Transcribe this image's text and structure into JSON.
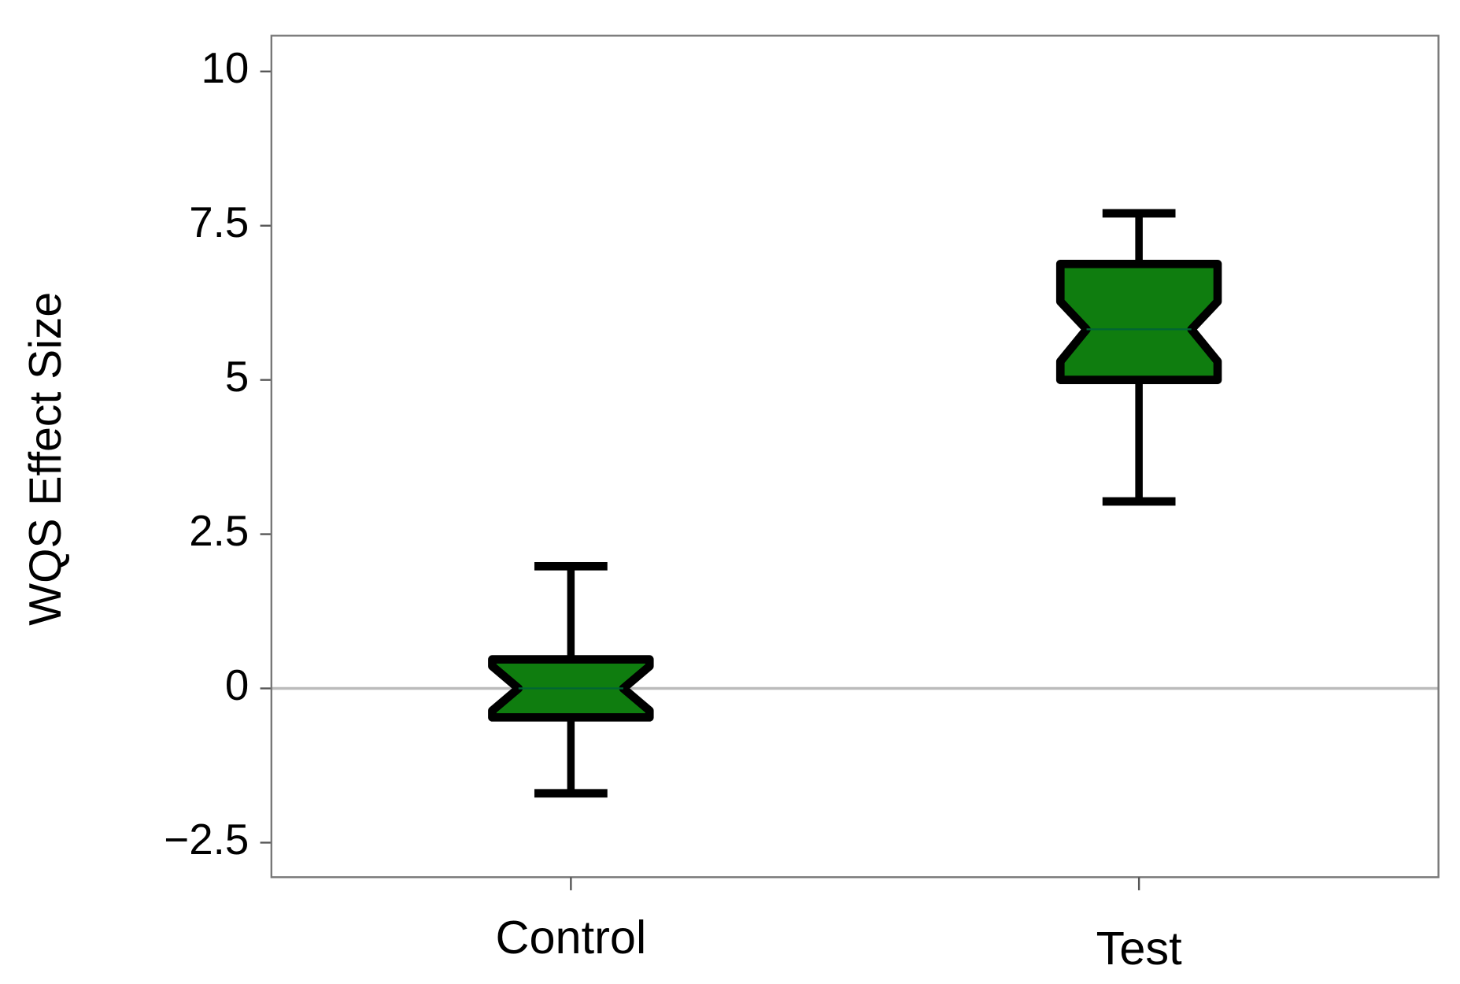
{
  "chart_data": {
    "type": "box",
    "y_label": "WQS Effect Size",
    "categories": [
      "Control",
      "Test"
    ],
    "boxes": [
      {
        "whisker_low": -1.7,
        "q1": -0.47,
        "notch_low": -0.36,
        "median": 0.0,
        "notch_high": 0.36,
        "q3": 0.47,
        "whisker_high": 1.98
      },
      {
        "whisker_low": 3.03,
        "q1": 5.0,
        "notch_low": 5.3,
        "median": 5.82,
        "notch_high": 6.27,
        "q3": 6.88,
        "whisker_high": 7.7
      }
    ],
    "color": "#0f7d0f",
    "reference_line": 0,
    "ylim": [
      -3.06,
      10.58
    ],
    "yticks": [
      {
        "value": -2.5,
        "label": "−2.5"
      },
      0,
      2.5,
      5,
      7.5,
      10
    ]
  }
}
